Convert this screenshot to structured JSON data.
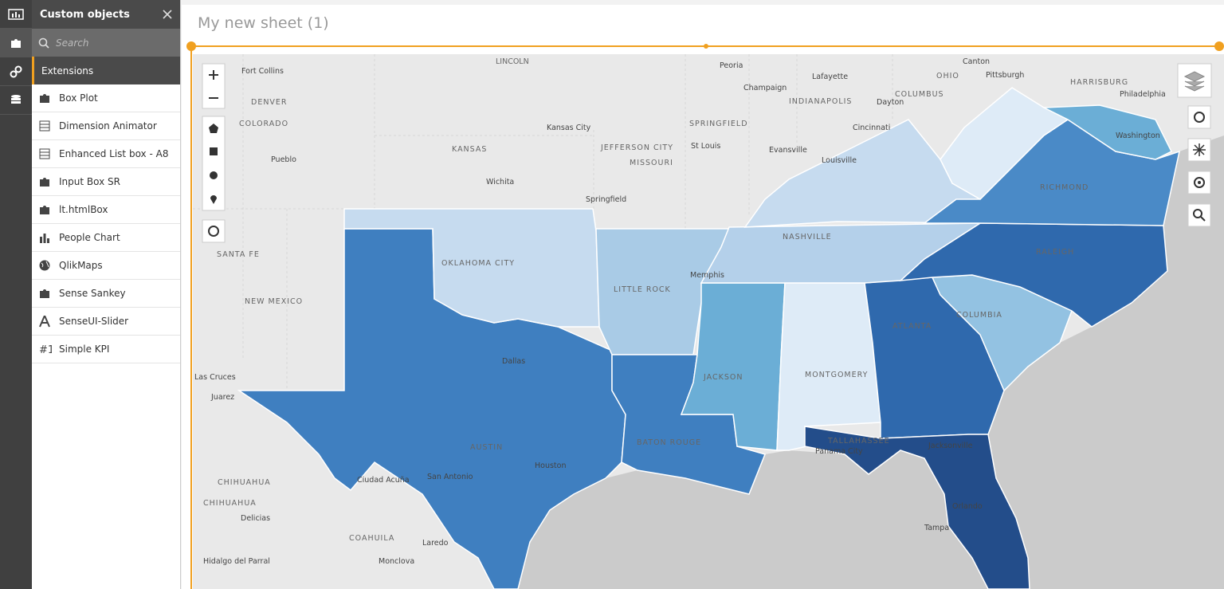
{
  "sidebar": {
    "title": "Custom objects",
    "search_placeholder": "Search",
    "section": "Extensions",
    "items": [
      "Box Plot",
      "Dimension Animator",
      "Enhanced List box - A8",
      "Input Box SR",
      "lt.htmlBox",
      "People Chart",
      "QlikMaps",
      "Sense Sankey",
      "SenseUI-Slider",
      "Simple KPI"
    ]
  },
  "sheet": {
    "title": "My new sheet (1)"
  },
  "map": {
    "labels": [
      "LINCOLN",
      "Fort Collins",
      "DENVER",
      "COLORADO",
      "Pueblo",
      "KANSAS",
      "Kansas City",
      "Wichita",
      "JEFFERSON CITY",
      "MISSOURI",
      "St Louis",
      "Springfield",
      "SPRINGFIELD",
      "Peoria",
      "Champaign",
      "INDIANAPOLIS",
      "Lafayette",
      "Evansville",
      "Louisville",
      "Cincinnati",
      "Dayton",
      "COLUMBUS",
      "OHIO",
      "Canton",
      "Pittsburgh",
      "HARRISBURG",
      "Philadelphia",
      "Washington",
      "RICHMOND",
      "NASHVILLE",
      "RALEIGH",
      "COLUMBIA",
      "ATLANTA",
      "MONTGOMERY",
      "Memphis",
      "LITTLE ROCK",
      "OKLAHOMA CITY",
      "Dallas",
      "AUSTIN",
      "Houston",
      "San Antonio",
      "BATON ROUGE",
      "JACKSON",
      "TALLAHASSEE",
      "Panama City",
      "Jacksonville",
      "Orlando",
      "Tampa",
      "SANTA FE",
      "NEW MEXICO",
      "Las Cruces",
      "Juarez",
      "CHIHUAHUA",
      "CHIHUAHUA",
      "Delicias",
      "COAHUILA",
      "Ciudad Acuña",
      "Laredo",
      "Monclova",
      "Hidalgo del Parral"
    ]
  }
}
